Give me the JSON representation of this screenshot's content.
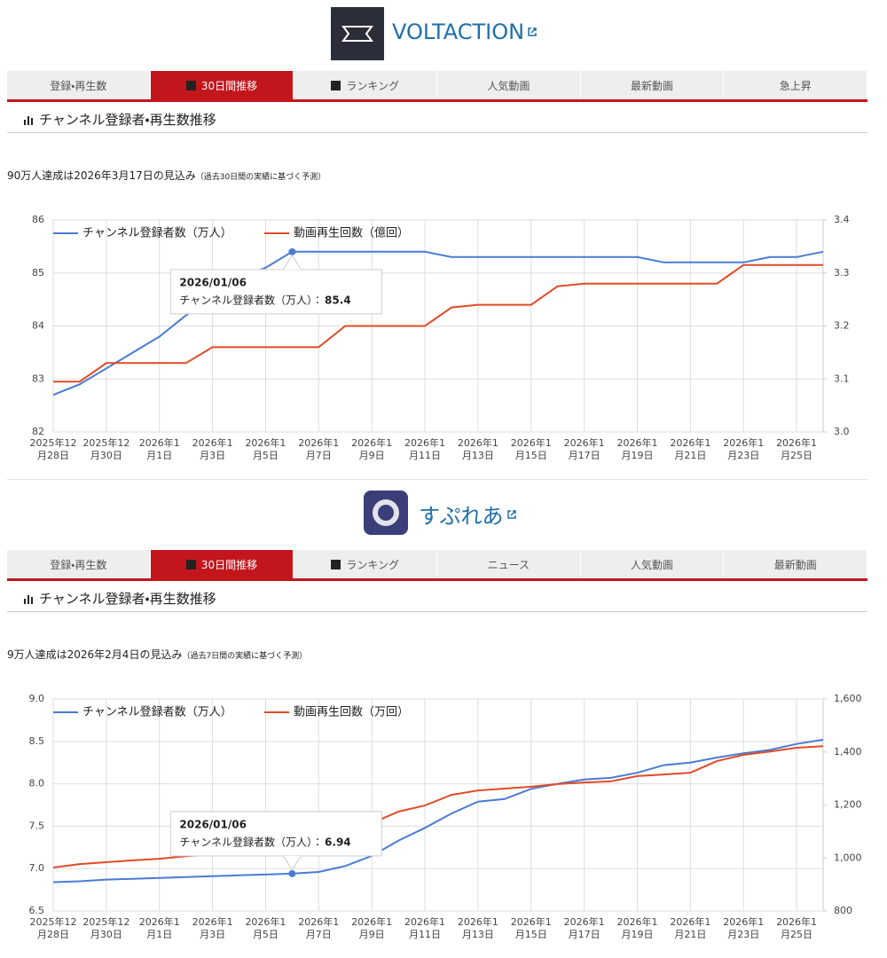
{
  "sections": [
    {
      "channel": "VOLTACTION",
      "tabs": [
        "登録・再生数",
        "30日間推移",
        "ランキング",
        "人気動画",
        "最新動画",
        "急上昇"
      ],
      "heading": "チャンネル登録者・再生数推移",
      "forecast": "90万人達成は2026年3月17日の見込み",
      "forecast_note": "（過去30日間の実績に基づく予測）"
    },
    {
      "channel": "すぷれあ",
      "tabs": [
        "登録・再生数",
        "30日間推移",
        "ランキング",
        "ニュース",
        "人気動画",
        "最新動画"
      ],
      "heading": "チャンネル登録者・再生数推移",
      "forecast": "9万人達成は2026年2月4日の見込み",
      "forecast_note": "（過去7日間の実績に基づく予測）"
    }
  ],
  "chart_data": [
    {
      "type": "line",
      "categories": [
        "2025年12月28日",
        null,
        "2025年12月30日",
        null,
        "2026年1月1日",
        null,
        "2026年1月3日",
        null,
        "2026年1月5日",
        null,
        "2026年1月7日",
        null,
        "2026年1月9日",
        null,
        "2026年1月11日",
        null,
        "2026年1月13日",
        null,
        "2026年1月15日",
        null,
        "2026年1月17日",
        null,
        "2026年1月19日",
        null,
        "2026年1月21日",
        null,
        "2026年1月23日",
        null,
        "2026年1月25日",
        null
      ],
      "series": [
        {
          "name": "チャンネル登録者数（万人）",
          "color": "#4a7bd4",
          "values": [
            82.7,
            82.9,
            83.2,
            83.5,
            83.8,
            84.2,
            84.5,
            84.9,
            85.1,
            85.4,
            85.4,
            85.4,
            85.4,
            85.4,
            85.4,
            85.3,
            85.3,
            85.3,
            85.3,
            85.3,
            85.3,
            85.3,
            85.3,
            85.2,
            85.2,
            85.2,
            85.2,
            85.3,
            85.3,
            85.4
          ]
        },
        {
          "name": "動画再生回数（億回）",
          "color": "#e04b27",
          "axis": "y2",
          "values": [
            3.095,
            3.095,
            3.13,
            3.13,
            3.13,
            3.13,
            3.16,
            3.16,
            3.16,
            3.16,
            3.16,
            3.2,
            3.2,
            3.2,
            3.2,
            3.235,
            3.24,
            3.24,
            3.24,
            3.275,
            3.28,
            3.28,
            3.28,
            3.28,
            3.28,
            3.28,
            3.315,
            3.315,
            3.315,
            3.315
          ]
        }
      ],
      "ylim": [
        82,
        86
      ],
      "yticks": [
        82,
        83,
        84,
        85,
        86
      ],
      "y2lim": [
        3.0,
        3.4
      ],
      "y2ticks": [
        {
          "value": 3.0,
          "label": "3.0"
        },
        3.1,
        3.2,
        3.3,
        3.4
      ],
      "grid": true,
      "legend": "top",
      "tooltip": {
        "title": "2026/01/06",
        "label": "チャンネル登録者数（万人）：",
        "value": 85.4
      }
    },
    {
      "type": "line",
      "categories": [
        "2025年12月28日",
        null,
        "2025年12月30日",
        null,
        "2026年1月1日",
        null,
        "2026年1月3日",
        null,
        "2026年1月5日",
        null,
        "2026年1月7日",
        null,
        "2026年1月9日",
        null,
        "2026年1月11日",
        null,
        "2026年1月13日",
        null,
        "2026年1月15日",
        null,
        "2026年1月17日",
        null,
        "2026年1月19日",
        null,
        "2026年1月21日",
        null,
        "2026年1月23日",
        null,
        "2026年1月25日",
        null
      ],
      "series": [
        {
          "name": "チャンネル登録者数（万人）",
          "color": "#4a7bd4",
          "values": [
            6.84,
            6.85,
            6.87,
            6.88,
            6.89,
            6.9,
            6.91,
            6.92,
            6.93,
            6.94,
            6.96,
            7.03,
            7.15,
            7.33,
            7.48,
            7.65,
            7.79,
            7.82,
            7.94,
            8.0,
            8.05,
            8.07,
            8.13,
            8.22,
            8.25,
            8.31,
            8.36,
            8.4,
            8.47,
            8.52
          ]
        },
        {
          "name": "動画再生回数（万回）",
          "color": "#e04b27",
          "axis": "y2",
          "values": [
            964,
            977,
            984,
            991,
            997,
            1007,
            1014,
            1024,
            1034,
            1044,
            1058,
            1091,
            1131,
            1175,
            1198,
            1238,
            1255,
            1262,
            1269,
            1279,
            1285,
            1289,
            1309,
            1315,
            1322,
            1366,
            1389,
            1402,
            1416,
            1422
          ]
        }
      ],
      "ylim": [
        6.5,
        9.0
      ],
      "yticks": [
        6.5,
        {
          "value": 7.0,
          "label": "7.0"
        },
        7.5,
        {
          "value": 8.0,
          "label": "8.0"
        },
        8.5,
        {
          "value": 9.0,
          "label": "9.0"
        }
      ],
      "y2lim": [
        800,
        1600
      ],
      "y2ticks": [
        800,
        {
          "value": 1000,
          "label": "1,000"
        },
        {
          "value": 1200,
          "label": "1,200"
        },
        {
          "value": 1400,
          "label": "1,400"
        },
        {
          "value": 1600,
          "label": "1,600"
        }
      ],
      "grid": true,
      "legend": "top",
      "tooltip": {
        "title": "2026/01/06",
        "label": "チャンネル登録者数（万人）：",
        "value": 6.94
      }
    }
  ]
}
